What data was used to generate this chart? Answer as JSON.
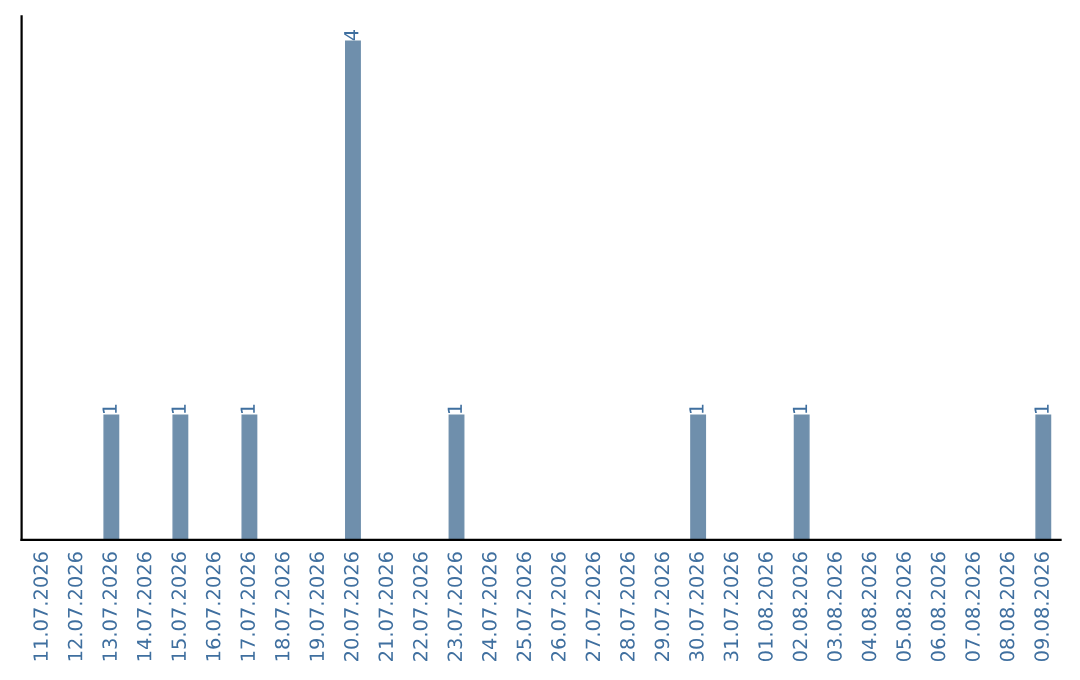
{
  "chart_data": {
    "type": "bar",
    "categories": [
      "11.07.2026",
      "12.07.2026",
      "13.07.2026",
      "14.07.2026",
      "15.07.2026",
      "16.07.2026",
      "17.07.2026",
      "18.07.2026",
      "19.07.2026",
      "20.07.2026",
      "21.07.2026",
      "22.07.2026",
      "23.07.2026",
      "24.07.2026",
      "25.07.2026",
      "26.07.2026",
      "27.07.2026",
      "28.07.2026",
      "29.07.2026",
      "30.07.2026",
      "31.07.2026",
      "01.08.2026",
      "02.08.2026",
      "03.08.2026",
      "04.08.2026",
      "05.08.2026",
      "06.08.2026",
      "07.08.2026",
      "08.08.2026",
      "09.08.2026"
    ],
    "values": [
      0,
      0,
      1,
      0,
      1,
      0,
      1,
      0,
      0,
      4,
      0,
      0,
      1,
      0,
      0,
      0,
      0,
      0,
      0,
      1,
      0,
      0,
      1,
      0,
      0,
      0,
      0,
      0,
      0,
      1
    ],
    "value_labels": [
      null,
      null,
      "1",
      null,
      "1",
      null,
      "1",
      null,
      null,
      "4",
      null,
      null,
      "1",
      null,
      null,
      null,
      null,
      null,
      null,
      "1",
      null,
      null,
      "1",
      null,
      null,
      null,
      null,
      null,
      null,
      "1"
    ],
    "color": "#6f8fac",
    "ylim": [
      0,
      4.2
    ],
    "tick_labels": "x",
    "grid": false,
    "legend": false
  }
}
